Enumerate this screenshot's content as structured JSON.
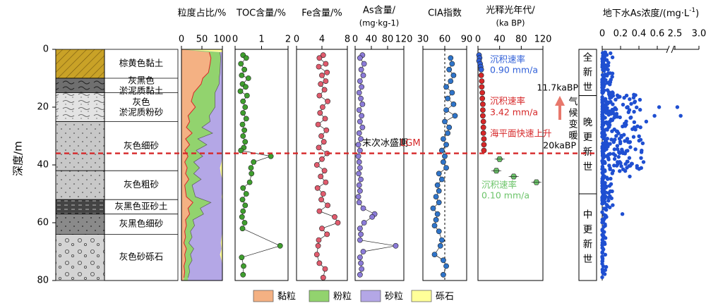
{
  "chart_data": {
    "type": "scatter",
    "y_axis": {
      "label": "深度/m",
      "range": [
        0,
        80
      ],
      "ticks": [
        0,
        20,
        40,
        60,
        80
      ],
      "inverted": true
    },
    "lithology": {
      "layers": [
        {
          "name": "棕黄色黏土",
          "top": 0,
          "bottom": 10,
          "color": "#c9a227",
          "pattern": "diagonal"
        },
        {
          "name": "灰黑色淤泥质黏土",
          "top": 10,
          "bottom": 15,
          "color": "#6f6f6f",
          "pattern": "wave"
        },
        {
          "name": "灰色淤泥质粉砂",
          "top": 15,
          "bottom": 25,
          "color": "#e3e3e3",
          "pattern": "wave-dot"
        },
        {
          "name": "灰色细砂",
          "top": 25,
          "bottom": 42,
          "color": "#c8c8c8",
          "pattern": "dot"
        },
        {
          "name": "灰色粗砂",
          "top": 42,
          "bottom": 52,
          "color": "#c8c8c8",
          "pattern": "dot"
        },
        {
          "name": "灰黑色亚砂土",
          "top": 52,
          "bottom": 57,
          "color": "#444444",
          "pattern": "dash"
        },
        {
          "name": "灰黑色细砂",
          "top": 57,
          "bottom": 64,
          "color": "#8a8a8a",
          "pattern": "dot"
        },
        {
          "name": "灰色砂砾石",
          "top": 64,
          "bottom": 80,
          "color": "#d4d4d4",
          "pattern": "circle"
        }
      ]
    },
    "panels": [
      {
        "id": "grain",
        "title": "粒度占比/%",
        "type": "area",
        "xlim": [
          0,
          100
        ],
        "ticks": [
          0,
          50,
          100
        ],
        "series": [
          {
            "name": "黏粒",
            "color": "#f4b183"
          },
          {
            "name": "粉粒",
            "color": "#92d36e"
          },
          {
            "name": "砂粒",
            "color": "#b4a7e6"
          },
          {
            "name": "砾石",
            "color": "#ffff99"
          }
        ],
        "depth": [
          1,
          3,
          5,
          8,
          10,
          12,
          15,
          18,
          20,
          23,
          25,
          27,
          29,
          31,
          33,
          35,
          37,
          39,
          41,
          43,
          45,
          47,
          49,
          51,
          53,
          55,
          57,
          59,
          61,
          63,
          65,
          67,
          69,
          71,
          73,
          75,
          77,
          79
        ],
        "clay": [
          68,
          72,
          70,
          66,
          52,
          48,
          30,
          24,
          34,
          16,
          20,
          12,
          26,
          10,
          20,
          8,
          16,
          8,
          14,
          10,
          18,
          8,
          10,
          12,
          28,
          16,
          20,
          10,
          12,
          8,
          10,
          6,
          12,
          8,
          10,
          6,
          8,
          6
        ],
        "silt": [
          26,
          24,
          25,
          28,
          40,
          44,
          52,
          58,
          48,
          52,
          50,
          38,
          50,
          30,
          42,
          28,
          36,
          22,
          30,
          20,
          30,
          18,
          20,
          22,
          44,
          30,
          34,
          18,
          20,
          14,
          16,
          12,
          18,
          14,
          16,
          12,
          12,
          10
        ],
        "gravel": [
          0,
          0,
          0,
          0,
          0,
          0,
          0,
          0,
          0,
          0,
          0,
          0,
          0,
          0,
          0,
          0,
          0,
          2,
          6,
          4,
          0,
          0,
          0,
          2,
          0,
          0,
          0,
          0,
          0,
          0,
          2,
          4,
          2,
          6,
          2,
          0,
          0,
          0
        ]
      },
      {
        "id": "toc",
        "title": "TOC含量/%",
        "type": "scatter",
        "xlim": [
          0,
          2
        ],
        "ticks": [
          0,
          1,
          2
        ],
        "color": "#3f9e2e",
        "points": [
          [
            0.3,
            2
          ],
          [
            0.42,
            3
          ],
          [
            0.22,
            5
          ],
          [
            0.35,
            7
          ],
          [
            0.25,
            9
          ],
          [
            0.5,
            10
          ],
          [
            0.28,
            12
          ],
          [
            0.4,
            13
          ],
          [
            0.2,
            14.5
          ],
          [
            0.45,
            16
          ],
          [
            0.3,
            18
          ],
          [
            0.38,
            20
          ],
          [
            0.3,
            22
          ],
          [
            0.42,
            24
          ],
          [
            0.28,
            26
          ],
          [
            0.35,
            28
          ],
          [
            0.3,
            30
          ],
          [
            0.38,
            32
          ],
          [
            0.33,
            34
          ],
          [
            0.22,
            35
          ],
          [
            1.35,
            37
          ],
          [
            0.7,
            39
          ],
          [
            0.6,
            41
          ],
          [
            0.62,
            43
          ],
          [
            0.55,
            46
          ],
          [
            0.3,
            48
          ],
          [
            0.42,
            50
          ],
          [
            0.28,
            52
          ],
          [
            0.38,
            54
          ],
          [
            0.3,
            56
          ],
          [
            0.26,
            58
          ],
          [
            0.36,
            60
          ],
          [
            0.28,
            62
          ],
          [
            1.7,
            68
          ],
          [
            0.25,
            72
          ],
          [
            0.32,
            75
          ],
          [
            0.3,
            78
          ]
        ]
      },
      {
        "id": "fe",
        "title": "Fe含量/%",
        "type": "scatter",
        "xlim": [
          0,
          8
        ],
        "ticks": [
          0,
          4,
          8
        ],
        "color": "#e05b6d",
        "points": [
          [
            4.2,
            2
          ],
          [
            3.6,
            3
          ],
          [
            4.6,
            5
          ],
          [
            3.5,
            6
          ],
          [
            4.8,
            8
          ],
          [
            4,
            9
          ],
          [
            4.6,
            11
          ],
          [
            3.8,
            12
          ],
          [
            4.4,
            14
          ],
          [
            3.6,
            16
          ],
          [
            4.9,
            18
          ],
          [
            4.1,
            20
          ],
          [
            3.7,
            22
          ],
          [
            4.5,
            24
          ],
          [
            3.4,
            26
          ],
          [
            4.7,
            28
          ],
          [
            3.9,
            30
          ],
          [
            4.3,
            32
          ],
          [
            3.5,
            34
          ],
          [
            4.8,
            36
          ],
          [
            4,
            38
          ],
          [
            3.2,
            40
          ],
          [
            4.4,
            42
          ],
          [
            3.8,
            44
          ],
          [
            4.6,
            46
          ],
          [
            3.3,
            48
          ],
          [
            4.2,
            50
          ],
          [
            3.9,
            52
          ],
          [
            4.9,
            54
          ],
          [
            3.6,
            56
          ],
          [
            6.0,
            58
          ],
          [
            6.5,
            60
          ],
          [
            4,
            62
          ],
          [
            4.8,
            64
          ],
          [
            3.5,
            66
          ],
          [
            3.4,
            68
          ],
          [
            3.2,
            71
          ],
          [
            3.6,
            74
          ],
          [
            4.5,
            76
          ],
          [
            4.2,
            79
          ]
        ]
      },
      {
        "id": "as",
        "title": "As含量/",
        "subtitle": "(mg·kg-1)",
        "type": "scatter",
        "xlim": [
          0,
          120
        ],
        "ticks": [
          0,
          40,
          80,
          120
        ],
        "tick_labels": [
          "0",
          "40",
          "80",
          "120"
        ],
        "color": "#8b7bd8",
        "points": [
          [
            18,
            2
          ],
          [
            12,
            3
          ],
          [
            22,
            5
          ],
          [
            15,
            7
          ],
          [
            20,
            9
          ],
          [
            12,
            11
          ],
          [
            16,
            13
          ],
          [
            10,
            15
          ],
          [
            14,
            17
          ],
          [
            18,
            19
          ],
          [
            10,
            21
          ],
          [
            16,
            23
          ],
          [
            12,
            25
          ],
          [
            18,
            27
          ],
          [
            10,
            29
          ],
          [
            14,
            31
          ],
          [
            8,
            33
          ],
          [
            12,
            35
          ],
          [
            8,
            37
          ],
          [
            10,
            39
          ],
          [
            12,
            41
          ],
          [
            9,
            43
          ],
          [
            14,
            45
          ],
          [
            10,
            47
          ],
          [
            12,
            49
          ],
          [
            8,
            51
          ],
          [
            10,
            53
          ],
          [
            20,
            55
          ],
          [
            48,
            57
          ],
          [
            42,
            58
          ],
          [
            22,
            60
          ],
          [
            12,
            62
          ],
          [
            14,
            64
          ],
          [
            12,
            66
          ],
          [
            100,
            68
          ],
          [
            20,
            70
          ],
          [
            12,
            72
          ],
          [
            14,
            74
          ],
          [
            16,
            76
          ],
          [
            12,
            78
          ]
        ]
      },
      {
        "id": "cia",
        "title": "CIA指数",
        "type": "scatter",
        "xlim": [
          30,
          90
        ],
        "ticks": [
          30,
          60,
          90
        ],
        "refline": 60,
        "color": "#2f74c9",
        "points": [
          [
            68,
            3
          ],
          [
            70,
            5
          ],
          [
            66,
            7
          ],
          [
            72,
            9
          ],
          [
            68,
            11
          ],
          [
            62,
            13
          ],
          [
            70,
            15
          ],
          [
            64,
            17
          ],
          [
            72,
            19
          ],
          [
            62,
            21
          ],
          [
            74,
            23
          ],
          [
            60,
            25
          ],
          [
            66,
            27
          ],
          [
            64,
            29
          ],
          [
            58,
            31
          ],
          [
            62,
            33
          ],
          [
            56,
            35
          ],
          [
            60,
            37
          ],
          [
            58,
            39
          ],
          [
            62,
            41
          ],
          [
            52,
            43
          ],
          [
            56,
            45
          ],
          [
            50,
            47
          ],
          [
            52,
            49
          ],
          [
            48,
            51
          ],
          [
            52,
            53
          ],
          [
            44,
            55
          ],
          [
            50,
            57
          ],
          [
            48,
            59
          ],
          [
            46,
            61
          ],
          [
            52,
            63
          ],
          [
            56,
            66
          ],
          [
            54,
            68
          ],
          [
            46,
            71
          ],
          [
            58,
            73
          ],
          [
            62,
            75
          ],
          [
            58,
            78
          ]
        ]
      },
      {
        "id": "osl",
        "title": "光释光年代/",
        "subtitle": "(ka BP)",
        "type": "scatter",
        "xlim": [
          0,
          120
        ],
        "ticks": [
          0,
          40,
          80,
          120
        ],
        "points": [
          [
            2,
            2,
            "#2f5fd8"
          ],
          [
            3,
            3,
            "#2f5fd8"
          ],
          [
            2,
            4,
            "#2f5fd8"
          ],
          [
            4,
            5,
            "#2f5fd8"
          ],
          [
            5,
            6,
            "#2f5fd8"
          ],
          [
            6,
            7,
            "#2f5fd8"
          ],
          [
            6,
            9,
            "#d62728"
          ],
          [
            7,
            11,
            "#d62728"
          ],
          [
            7,
            13,
            "#d62728"
          ],
          [
            8,
            15,
            "#d62728"
          ],
          [
            8,
            17,
            "#d62728"
          ],
          [
            9,
            19,
            "#d62728"
          ],
          [
            9,
            21,
            "#d62728"
          ],
          [
            9,
            23,
            "#d62728"
          ],
          [
            10,
            25,
            "#d62728"
          ],
          [
            10,
            27,
            "#d62728"
          ],
          [
            10,
            29,
            "#d62728"
          ],
          [
            11,
            31,
            "#d62728"
          ],
          [
            11,
            33,
            "#d62728"
          ],
          [
            11,
            35,
            "#d62728"
          ],
          [
            40,
            38,
            "#6cc46a"
          ],
          [
            34,
            42,
            "#6cc46a"
          ],
          [
            66,
            44,
            "#6cc46a"
          ],
          [
            108,
            46,
            "#6cc46a"
          ]
        ],
        "annotations": [
          {
            "text": "沉积速率",
            "color": "#2f5fd8"
          },
          {
            "text": "0.90 mm/a",
            "color": "#2f5fd8"
          },
          {
            "text": "沉积速率",
            "color": "#d62728"
          },
          {
            "text": "3.42 mm/a",
            "color": "#d62728"
          },
          {
            "text": "海平面快速上升",
            "color": "#d62728"
          },
          {
            "text": "沉积速率",
            "color": "#6cc46a"
          },
          {
            "text": "0.10 mm/a",
            "color": "#6cc46a"
          },
          {
            "text": "11.7kaBP",
            "color": "#000000"
          },
          {
            "text": "20kaBP",
            "color": "#000000"
          },
          {
            "text": "气候变暖",
            "color": "#000000"
          }
        ]
      },
      {
        "id": "epoch",
        "type": "labels",
        "items": [
          {
            "text": "全新世",
            "top": 0,
            "bottom": 16
          },
          {
            "text": "晚更新世",
            "top": 16,
            "bottom": 50
          },
          {
            "text": "中更新世",
            "top": 50,
            "bottom": 80
          }
        ]
      },
      {
        "id": "gw_as",
        "title": "地下水As浓度/(mg·L",
        "title_sup": "-1",
        "title_end": ")",
        "type": "scatter",
        "xlim": [
          0,
          3.0
        ],
        "ticks": [
          0,
          0.2,
          0.4,
          0.6,
          2.5,
          3.0
        ],
        "tick_labels": [
          "0",
          "0.2",
          "0.4",
          "0.6",
          "2.5",
          "3.0"
        ],
        "color": "#1f4fd1"
      }
    ],
    "lgm": {
      "depth": 36,
      "label": "末次冰盛期",
      "label2": "LGM",
      "color": "#d62728"
    },
    "legend": [
      {
        "name": "黏粒",
        "color": "#f4b183"
      },
      {
        "name": "粉粒",
        "color": "#92d36e"
      },
      {
        "name": "砂粒",
        "color": "#b4a7e6"
      },
      {
        "name": "砾石",
        "color": "#ffff99"
      }
    ]
  }
}
